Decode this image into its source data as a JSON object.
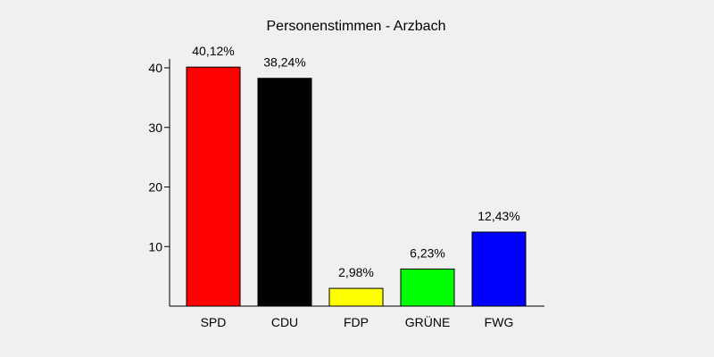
{
  "chart_data": {
    "type": "bar",
    "title": "Personenstimmen - Arzbach",
    "xlabel": "",
    "ylabel": "",
    "categories": [
      "SPD",
      "CDU",
      "FDP",
      "GRÜNE",
      "FWG"
    ],
    "values": [
      40.12,
      38.24,
      2.98,
      6.23,
      12.43
    ],
    "value_labels": [
      "40,12%",
      "38,24%",
      "2,98%",
      "6,23%",
      "12,43%"
    ],
    "colors": [
      "#ff0000",
      "#000000",
      "#ffff00",
      "#00ff00",
      "#0000ff"
    ],
    "yticks": [
      10,
      20,
      30,
      40
    ],
    "ytick_labels": [
      "10",
      "20",
      "30",
      "40"
    ],
    "ylim": [
      0,
      40
    ],
    "grid": false,
    "legend": "none"
  }
}
